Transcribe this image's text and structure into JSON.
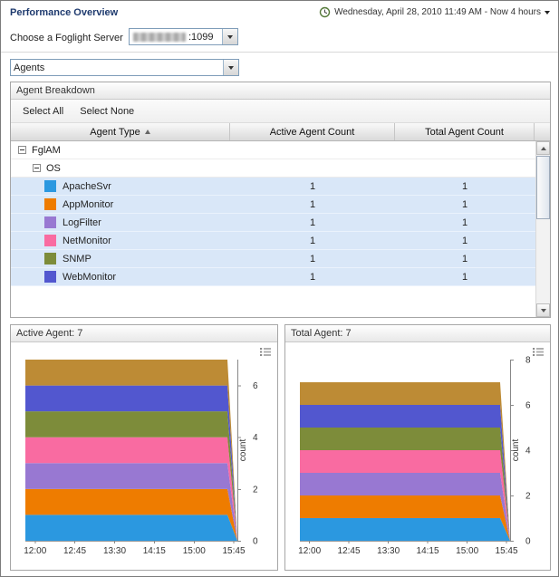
{
  "header": {
    "title": "Performance Overview",
    "time_range": "Wednesday, April 28, 2010 11:49 AM - Now 4 hours"
  },
  "server": {
    "label": "Choose a Foglight Server",
    "visible_value": ":1099",
    "redacted": true
  },
  "dashboard_selector": {
    "value": "Agents"
  },
  "agent_breakdown": {
    "title": "Agent Breakdown",
    "toolbar": {
      "select_all": "Select All",
      "select_none": "Select None"
    },
    "columns": {
      "agent_type": "Agent Type",
      "active": "Active Agent Count",
      "total": "Total Agent Count"
    },
    "sort": {
      "column": "Agent Type",
      "direction": "ascending"
    },
    "groups": [
      {
        "label": "FglAM",
        "expanded": true
      },
      {
        "label": "OS",
        "expanded": true
      }
    ],
    "rows": [
      {
        "label": "ApacheSvr",
        "color": "#2b98e0",
        "active": "1",
        "total": "1"
      },
      {
        "label": "AppMonitor",
        "color": "#ee7c00",
        "active": "1",
        "total": "1"
      },
      {
        "label": "LogFilter",
        "color": "#9878d2",
        "active": "1",
        "total": "1"
      },
      {
        "label": "NetMonitor",
        "color": "#f96ba1",
        "active": "1",
        "total": "1"
      },
      {
        "label": "SNMP",
        "color": "#7d8c3a",
        "active": "1",
        "total": "1"
      },
      {
        "label": "WebMonitor",
        "color": "#5257cf",
        "active": "1",
        "total": "1"
      }
    ]
  },
  "charts": [
    {
      "title": "Active Agent: 7"
    },
    {
      "title": "Total Agent: 7"
    }
  ],
  "chart_data": [
    {
      "type": "area",
      "stacked": true,
      "title": "Active Agent: 7",
      "ylabel": "count",
      "ylim": [
        0,
        7
      ],
      "yticks": [
        0,
        2,
        4,
        6
      ],
      "x_range": [
        "11:49",
        "15:49"
      ],
      "drop_to_zero_at_end": true,
      "xticks": [
        {
          "label": "12:00",
          "f": 0.046
        },
        {
          "label": "12:45",
          "f": 0.233
        },
        {
          "label": "13:30",
          "f": 0.421
        },
        {
          "label": "14:15",
          "f": 0.608
        },
        {
          "label": "15:00",
          "f": 0.796
        },
        {
          "label": "15:45",
          "f": 0.983
        }
      ],
      "series": [
        {
          "name": "ApacheSvr",
          "color": "#2b98e0",
          "value": 1
        },
        {
          "name": "AppMonitor",
          "color": "#ee7c00",
          "value": 1
        },
        {
          "name": "LogFilter",
          "color": "#9878d2",
          "value": 1
        },
        {
          "name": "NetMonitor",
          "color": "#f96ba1",
          "value": 1
        },
        {
          "name": "SNMP",
          "color": "#7d8c3a",
          "value": 1
        },
        {
          "name": "WebMonitor",
          "color": "#5257cf",
          "value": 1
        },
        {
          "name": "FglAM",
          "color": "#bd8b35",
          "value": 1
        }
      ]
    },
    {
      "type": "area",
      "stacked": true,
      "title": "Total Agent: 7",
      "ylabel": "count",
      "ylim": [
        0,
        8
      ],
      "yticks": [
        0,
        2,
        4,
        6,
        8
      ],
      "x_range": [
        "11:49",
        "15:49"
      ],
      "drop_to_zero_at_end": true,
      "xticks": [
        {
          "label": "12:00",
          "f": 0.046
        },
        {
          "label": "12:45",
          "f": 0.233
        },
        {
          "label": "13:30",
          "f": 0.421
        },
        {
          "label": "14:15",
          "f": 0.608
        },
        {
          "label": "15:00",
          "f": 0.796
        },
        {
          "label": "15:45",
          "f": 0.983
        }
      ],
      "series": [
        {
          "name": "ApacheSvr",
          "color": "#2b98e0",
          "value": 1
        },
        {
          "name": "AppMonitor",
          "color": "#ee7c00",
          "value": 1
        },
        {
          "name": "LogFilter",
          "color": "#9878d2",
          "value": 1
        },
        {
          "name": "NetMonitor",
          "color": "#f96ba1",
          "value": 1
        },
        {
          "name": "SNMP",
          "color": "#7d8c3a",
          "value": 1
        },
        {
          "name": "WebMonitor",
          "color": "#5257cf",
          "value": 1
        },
        {
          "name": "FglAM",
          "color": "#bd8b35",
          "value": 1
        }
      ]
    }
  ]
}
